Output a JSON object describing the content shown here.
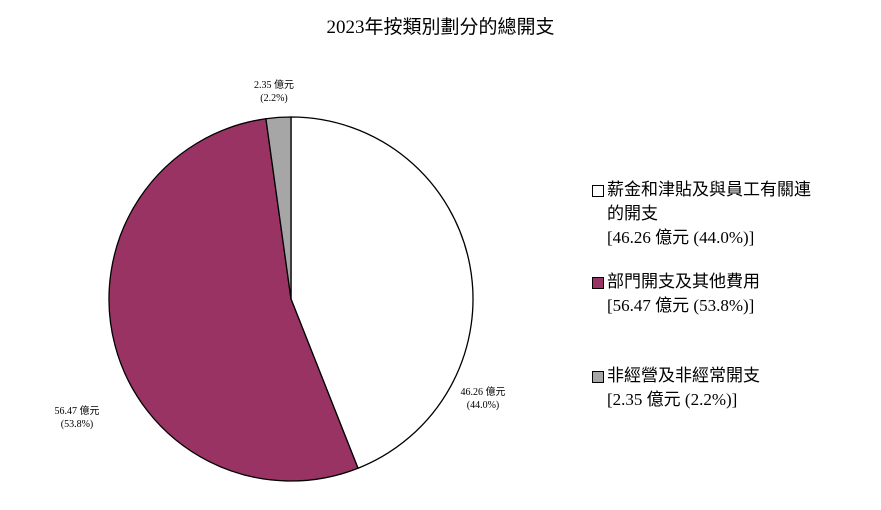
{
  "chart_data": {
    "type": "pie",
    "title": "2023年按類別劃分的總開支",
    "unit": "億元",
    "slices": [
      {
        "name": "薪金和津貼及與員工有關連的開支",
        "value": 46.26,
        "percent": 44.0,
        "color": "#ffffff",
        "label": "46.26 億元",
        "pct_label": "(44.0%)",
        "legend_line1": "薪金和津貼及與員工有關連",
        "legend_line2": "的開支",
        "legend_value": "[46.26 億元 (44.0%)]"
      },
      {
        "name": "部門開支及其他費用",
        "value": 56.47,
        "percent": 53.8,
        "color": "#983363",
        "label": "56.47 億元",
        "pct_label": "(53.8%)",
        "legend_line1": "部門開支及其他費用",
        "legend_value": "[56.47 億元 (53.8%)]"
      },
      {
        "name": "非經營及非經常開支",
        "value": 2.35,
        "percent": 2.2,
        "color": "#a6a6a6",
        "label": "2.35 億元",
        "pct_label": "(2.2%)",
        "legend_line1": "非經營及非經常開支",
        "legend_value": "[2.35 億元 (2.2%)]"
      }
    ],
    "legend_position": "right",
    "start_angle": "12 o'clock",
    "direction": "clockwise"
  }
}
